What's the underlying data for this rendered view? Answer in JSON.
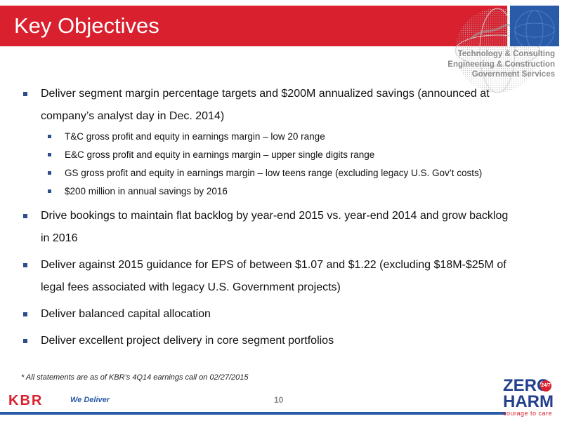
{
  "slide": {
    "title": "Key Objectives",
    "page_number": "10"
  },
  "brand": {
    "taglines": [
      "Technology & Consulting",
      "Engineering & Construction",
      "Government Services"
    ],
    "kbr_logo_text": "KBR",
    "slogan": "We Deliver",
    "zero_harm": {
      "line1": "ZERO",
      "line2": "HARM",
      "tagline": "courage to care",
      "badge": "24/7"
    },
    "colors": {
      "title_bar": "#d8202f",
      "blue": "#2a5ba8",
      "bullet": "#2a4f8a"
    }
  },
  "content": {
    "b1": {
      "line1": "Deliver segment margin percentage targets and $200M annualized savings (announced at",
      "line2": "company’s analyst day in Dec. 2014)",
      "subs": [
        "T&C gross profit and equity in earnings margin – low 20 range",
        "E&C gross profit and equity in earnings margin – upper single digits range",
        "GS gross profit and equity in earnings margin – low teens range (excluding legacy U.S. Gov’t  costs)",
        "$200 million in annual savings by 2016"
      ]
    },
    "b2": {
      "line1": "Drive bookings to maintain flat backlog by year-end 2015 vs. year-end 2014 and grow backlog",
      "line2": "in 2016"
    },
    "b3": {
      "line1": "Deliver against 2015 guidance for EPS of between $1.07 and $1.22 (excluding $18M-$25M of",
      "line2": "legal fees associated with legacy U.S. Government projects)"
    },
    "b4": {
      "line1": "Deliver balanced capital allocation"
    },
    "b5": {
      "line1": "Deliver excellent project delivery in core segment portfolios"
    }
  },
  "footnote": "* All statements are as of KBR’s 4Q14 earnings call on 02/27/2015"
}
